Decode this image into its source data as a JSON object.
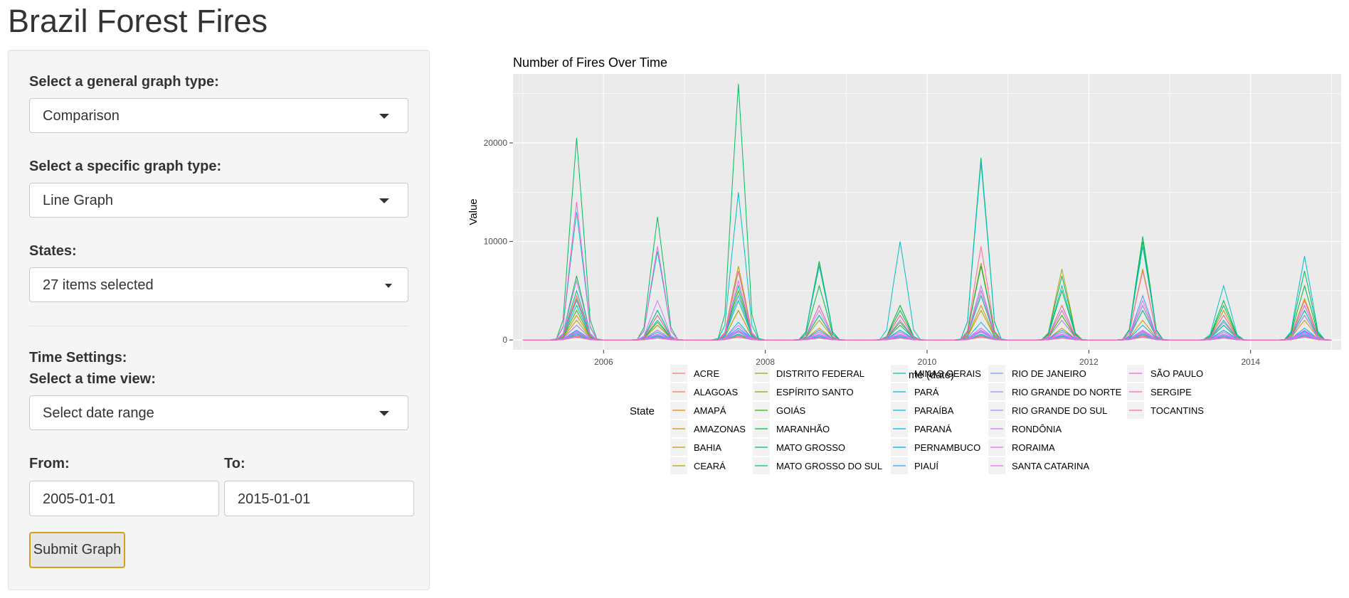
{
  "app": {
    "title": "Brazil Forest Fires"
  },
  "sidebar": {
    "general_type": {
      "label": "Select a general graph type:",
      "value": "Comparison"
    },
    "specific_type": {
      "label": "Select a specific graph type:",
      "value": "Line Graph"
    },
    "states": {
      "label": "States:",
      "value": "27 items selected"
    },
    "time_settings": {
      "heading": "Time Settings:",
      "label": "Select a time view:",
      "value": "Select date range"
    },
    "from": {
      "label": "From:",
      "value": "2005-01-01"
    },
    "to": {
      "label": "To:",
      "value": "2015-01-01"
    },
    "submit_label": "Submit Graph"
  },
  "chart_data": {
    "type": "line",
    "title": "Number of Fires Over Time",
    "xlabel": "Time (date)",
    "ylabel": "Value",
    "xlim": [
      "2005-01-01",
      "2015-01-01"
    ],
    "ylim": [
      -1000,
      27000
    ],
    "x_ticks": [
      2006,
      2008,
      2010,
      2012,
      2014
    ],
    "y_ticks": [
      0,
      10000,
      20000
    ],
    "grid": true,
    "legend_title": "State",
    "legend_position": "bottom",
    "peak_months": [
      "2005-09-01",
      "2006-09-01",
      "2007-09-01",
      "2008-09-01",
      "2009-09-01",
      "2010-09-01",
      "2011-09-01",
      "2012-09-01",
      "2013-09-01",
      "2014-09-01"
    ],
    "series": [
      {
        "name": "ACRE",
        "color": "#F8766D",
        "peaks": [
          700,
          400,
          800,
          300,
          200,
          900,
          400,
          600,
          300,
          500
        ]
      },
      {
        "name": "ALAGOAS",
        "color": "#EE8045",
        "peaks": [
          300,
          200,
          300,
          200,
          200,
          300,
          200,
          300,
          200,
          300
        ]
      },
      {
        "name": "AMAPÁ",
        "color": "#E38900",
        "peaks": [
          500,
          400,
          600,
          300,
          300,
          500,
          400,
          500,
          300,
          400
        ]
      },
      {
        "name": "AMAZONAS",
        "color": "#D39200",
        "peaks": [
          2500,
          1500,
          3000,
          1200,
          1000,
          3500,
          1200,
          2000,
          1000,
          2000
        ]
      },
      {
        "name": "BAHIA",
        "color": "#C09B00",
        "peaks": [
          4200,
          2500,
          7500,
          7800,
          3500,
          7800,
          7200,
          7200,
          3000,
          4200
        ]
      },
      {
        "name": "CEARÁ",
        "color": "#AAA400",
        "peaks": [
          2000,
          1500,
          3000,
          2000,
          1500,
          3000,
          2500,
          3000,
          1500,
          2500
        ]
      },
      {
        "name": "DISTRITO FEDERAL",
        "color": "#90AA00",
        "peaks": [
          300,
          200,
          400,
          200,
          200,
          400,
          200,
          300,
          200,
          300
        ]
      },
      {
        "name": "ESPÍRITO SANTO",
        "color": "#70B000",
        "peaks": [
          400,
          300,
          500,
          300,
          300,
          500,
          300,
          400,
          300,
          400
        ]
      },
      {
        "name": "GOIÁS",
        "color": "#39B600",
        "peaks": [
          3000,
          1800,
          5000,
          2500,
          1800,
          4500,
          2500,
          3500,
          1800,
          3000
        ]
      },
      {
        "name": "MARANHÃO",
        "color": "#00BA38",
        "peaks": [
          6500,
          3000,
          7000,
          5500,
          3000,
          7500,
          5000,
          10500,
          4000,
          5500
        ]
      },
      {
        "name": "MATO GROSSO",
        "color": "#00BD5C",
        "peaks": [
          20500,
          12500,
          26000,
          8000,
          3500,
          18500,
          6500,
          10000,
          3500,
          7000
        ]
      },
      {
        "name": "MATO GROSSO DO SUL",
        "color": "#00C08B",
        "peaks": [
          5000,
          3000,
          5500,
          2500,
          1500,
          5500,
          2000,
          3000,
          1500,
          2500
        ]
      },
      {
        "name": "MINAS GERAIS",
        "color": "#00C1A9",
        "peaks": [
          3500,
          2000,
          4000,
          2500,
          2000,
          4500,
          3000,
          3500,
          2000,
          3000
        ]
      },
      {
        "name": "PARÁ",
        "color": "#00BFC4",
        "peaks": [
          13000,
          9000,
          15000,
          7500,
          10000,
          18000,
          5500,
          9500,
          5500,
          8500
        ]
      },
      {
        "name": "PARAÍBA",
        "color": "#00BBDC",
        "peaks": [
          600,
          400,
          600,
          400,
          400,
          600,
          400,
          600,
          400,
          500
        ]
      },
      {
        "name": "PARANÁ",
        "color": "#00B4F0",
        "peaks": [
          1500,
          1000,
          1800,
          1000,
          1000,
          1800,
          1000,
          1500,
          1000,
          1200
        ]
      },
      {
        "name": "PERNAMBUCO",
        "color": "#00A9FF",
        "peaks": [
          1000,
          800,
          1200,
          800,
          800,
          1200,
          800,
          1000,
          800,
          900
        ]
      },
      {
        "name": "PIAUÍ",
        "color": "#35A2FF",
        "peaks": [
          4000,
          2500,
          4500,
          3500,
          2500,
          5000,
          3500,
          4500,
          2500,
          3500
        ]
      },
      {
        "name": "RIO DE JANEIRO",
        "color": "#7997FF",
        "peaks": [
          800,
          500,
          900,
          500,
          500,
          900,
          500,
          800,
          500,
          700
        ]
      },
      {
        "name": "RIO GRANDE DO NORTE",
        "color": "#9590FF",
        "peaks": [
          400,
          300,
          500,
          300,
          300,
          500,
          300,
          400,
          300,
          400
        ]
      },
      {
        "name": "RIO GRANDE DO SUL",
        "color": "#AC88FF",
        "peaks": [
          700,
          500,
          800,
          500,
          500,
          800,
          500,
          700,
          500,
          600
        ]
      },
      {
        "name": "RONDÔNIA",
        "color": "#C77CFF",
        "peaks": [
          6000,
          4000,
          7000,
          3000,
          2000,
          5500,
          2000,
          3500,
          1800,
          2500
        ]
      },
      {
        "name": "RORAIMA",
        "color": "#DC71FA",
        "peaks": [
          1500,
          1000,
          1500,
          800,
          800,
          1200,
          800,
          1000,
          800,
          1000
        ]
      },
      {
        "name": "SANTA CATARINA",
        "color": "#EC69EF",
        "peaks": [
          900,
          600,
          1000,
          600,
          600,
          1000,
          600,
          900,
          600,
          800
        ]
      },
      {
        "name": "SÃO PAULO",
        "color": "#F863DF",
        "peaks": [
          14000,
          9500,
          6000,
          3500,
          2500,
          5000,
          3000,
          4000,
          2500,
          3500
        ]
      },
      {
        "name": "SERGIPE",
        "color": "#FF62BC",
        "peaks": [
          300,
          200,
          300,
          200,
          200,
          300,
          200,
          300,
          200,
          300
        ]
      },
      {
        "name": "TOCANTINS",
        "color": "#FF6A98",
        "peaks": [
          4500,
          2500,
          7000,
          3500,
          2500,
          9500,
          3500,
          7000,
          2500,
          4000
        ]
      }
    ]
  }
}
